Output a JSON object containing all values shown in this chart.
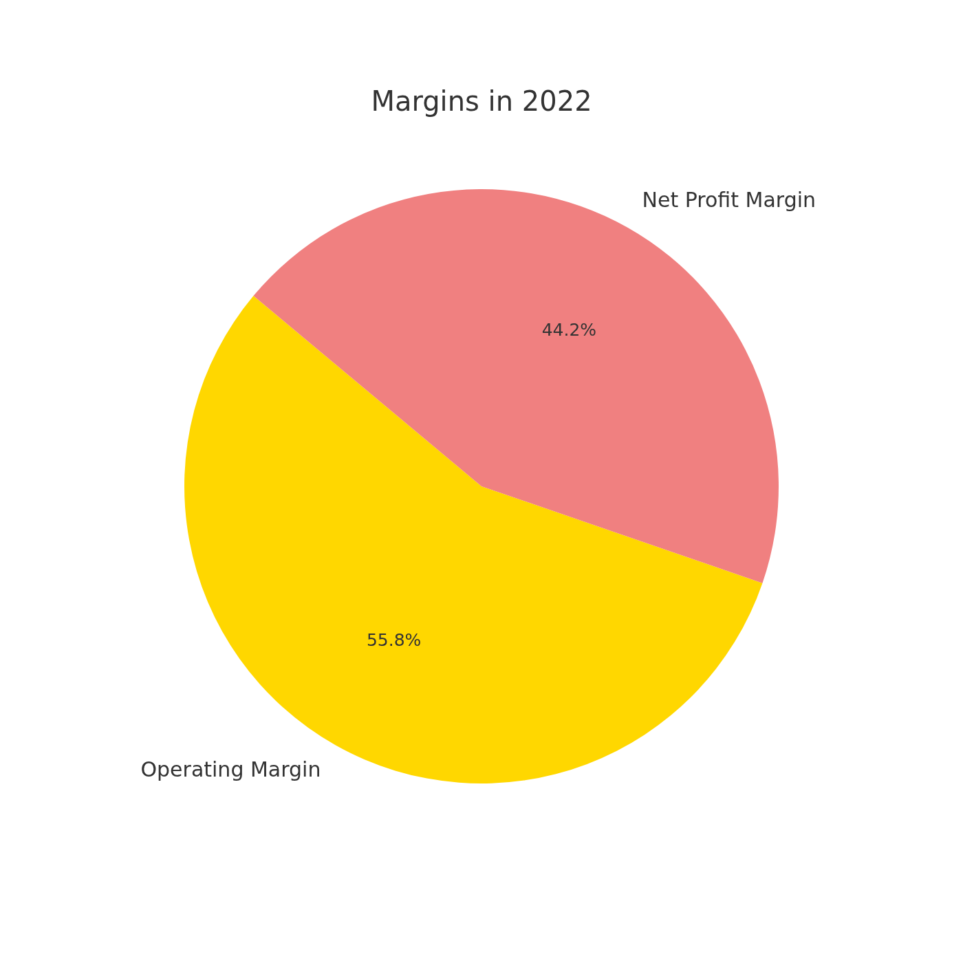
{
  "chart_data": {
    "type": "pie",
    "title": "Margins in 2022",
    "categories": [
      "Operating Margin",
      "Net Profit Margin"
    ],
    "values": [
      55.8,
      44.2
    ],
    "colors": [
      "#ffd700",
      "#f08080"
    ],
    "value_labels": [
      "55.8%",
      "44.2%"
    ]
  }
}
